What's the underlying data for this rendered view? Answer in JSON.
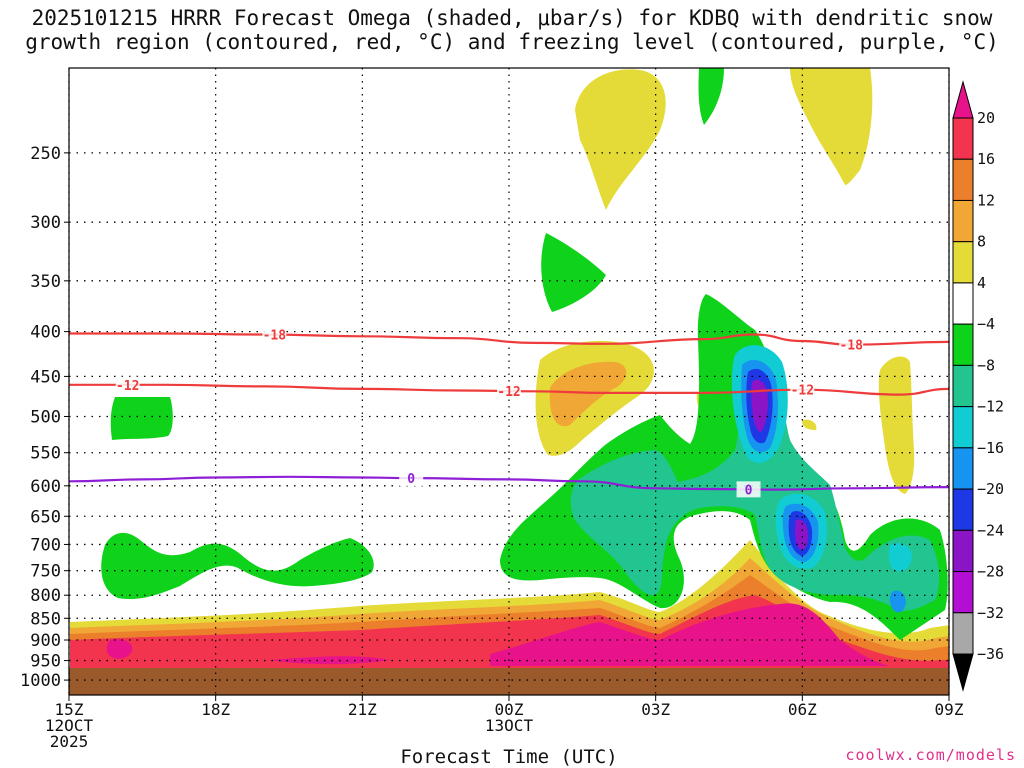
{
  "title_line1": "2025101215 HRRR Forecast Omega (shaded, μbar/s) for KDBQ with dendritic snow",
  "title_line2": "growth region (contoured, red, °C) and freezing level (contoured, purple, °C)",
  "credit": "coolwx.com/models",
  "colors": {
    "grid": "#000000",
    "ground": "#9b5a2c",
    "isotherm_red": "#ee3b3b",
    "isotherm_purple": "#8f1fd6"
  },
  "chart_data": {
    "type": "heatmap",
    "title": "2025101215 HRRR Forecast Omega (shaded, μbar/s) for KDBQ with dendritic snow growth region (contoured, red, °C) and freezing level (contoured, purple, °C)",
    "xlabel": "Forecast Time (UTC)",
    "ylabel": "",
    "y_axis_scale": "log-pressure (hPa), inverted",
    "ylim": [
      200,
      1040
    ],
    "xlim_hours": [
      15,
      33
    ],
    "x_ticks": [
      {
        "hour": 15,
        "labels": [
          "15Z",
          "12OCT",
          "2025"
        ]
      },
      {
        "hour": 18,
        "labels": [
          "18Z"
        ]
      },
      {
        "hour": 21,
        "labels": [
          "21Z"
        ]
      },
      {
        "hour": 24,
        "labels": [
          "00Z",
          "13OCT"
        ]
      },
      {
        "hour": 27,
        "labels": [
          "03Z"
        ]
      },
      {
        "hour": 30,
        "labels": [
          "06Z"
        ]
      },
      {
        "hour": 33,
        "labels": [
          "09Z"
        ]
      }
    ],
    "y_ticks": [
      250,
      300,
      350,
      400,
      450,
      500,
      550,
      600,
      650,
      700,
      750,
      800,
      850,
      900,
      950,
      1000
    ],
    "ground_level_hpa": 985,
    "colorbar": {
      "labels": [
        "20",
        "16",
        "12",
        "8",
        "4",
        "−4",
        "−8",
        "−12",
        "−16",
        "−20",
        "−24",
        "−28",
        "−32",
        "−36"
      ],
      "bins": [
        {
          "color": "#e8138a",
          "range": [
            20,
            null
          ]
        },
        {
          "color": "#f2344e",
          "range": [
            16,
            20
          ]
        },
        {
          "color": "#ec7f2b",
          "range": [
            12,
            16
          ]
        },
        {
          "color": "#f0a735",
          "range": [
            8,
            12
          ]
        },
        {
          "color": "#e4db38",
          "range": [
            4,
            8
          ]
        },
        {
          "color": "#ffffff",
          "range": [
            -4,
            4
          ]
        },
        {
          "color": "#0fd21a",
          "range": [
            -8,
            -4
          ]
        },
        {
          "color": "#22c58f",
          "range": [
            -12,
            -8
          ]
        },
        {
          "color": "#11ccd2",
          "range": [
            -16,
            -12
          ]
        },
        {
          "color": "#1694f0",
          "range": [
            -20,
            -16
          ]
        },
        {
          "color": "#1f38e6",
          "range": [
            -24,
            -20
          ]
        },
        {
          "color": "#8a14c6",
          "range": [
            -28,
            -24
          ]
        },
        {
          "color": "#b30fd4",
          "range": [
            -32,
            -28
          ]
        },
        {
          "color": "#a8a8a8",
          "range": [
            -36,
            -32
          ]
        },
        {
          "color": "#000000",
          "range": [
            null,
            -36
          ]
        }
      ]
    },
    "contours": [
      {
        "name": "-18",
        "color": "#ee3b3b",
        "label_hours": [
          19.2,
          31.0
        ],
        "points": [
          [
            15,
            402
          ],
          [
            17,
            402
          ],
          [
            19,
            403
          ],
          [
            21,
            405
          ],
          [
            23,
            407
          ],
          [
            24.5,
            412
          ],
          [
            26,
            413
          ],
          [
            28,
            408
          ],
          [
            29,
            403
          ],
          [
            30,
            410
          ],
          [
            31,
            414
          ],
          [
            33,
            411
          ]
        ]
      },
      {
        "name": "-12",
        "color": "#ee3b3b",
        "label_hours": [
          16.2,
          24.0,
          30.0
        ],
        "points": [
          [
            15,
            460
          ],
          [
            17,
            460
          ],
          [
            19,
            462
          ],
          [
            21,
            465
          ],
          [
            23,
            467
          ],
          [
            24.5,
            468
          ],
          [
            26,
            470
          ],
          [
            28,
            470
          ],
          [
            30,
            466
          ],
          [
            32,
            472
          ],
          [
            33,
            465
          ]
        ]
      },
      {
        "name": "0",
        "color": "#8f1fd6",
        "label_hours": [
          22.0,
          28.9
        ],
        "points": [
          [
            15,
            593
          ],
          [
            16.5,
            590
          ],
          [
            18,
            587
          ],
          [
            19.5,
            586
          ],
          [
            21,
            587
          ],
          [
            22,
            588
          ],
          [
            24,
            590
          ],
          [
            25.5,
            593
          ],
          [
            27,
            604
          ],
          [
            28,
            605
          ],
          [
            29.5,
            606
          ],
          [
            31,
            604
          ],
          [
            33,
            602
          ]
        ]
      }
    ]
  }
}
